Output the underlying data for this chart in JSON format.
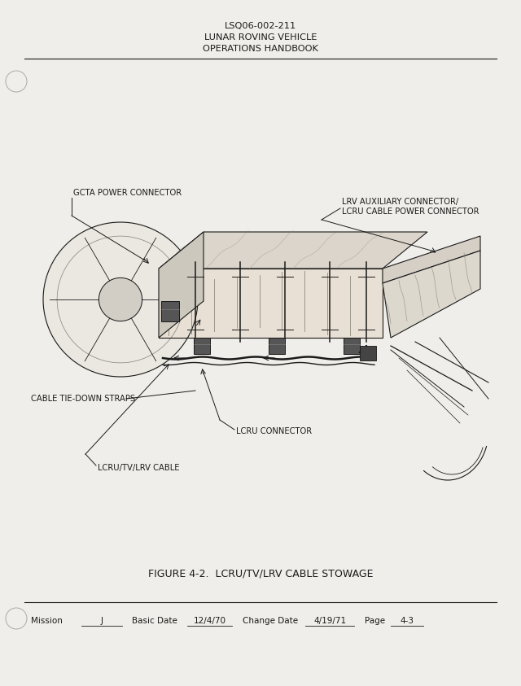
{
  "bg_color": "#f0eeea",
  "page_bg": "#f0eeea",
  "header_line1": "LSQ06-002-211",
  "header_line2": "LUNAR ROVING VEHICLE",
  "header_line3": "OPERATIONS HANDBOOK",
  "figure_caption": "FIGURE 4-2.  LCRU/TV/LRV CABLE STOWAGE",
  "label_gcta": "GCTA POWER CONNECTOR",
  "label_lrv_aux_1": "LRV AUXILIARY CONNECTOR/",
  "label_lrv_aux_2": "LCRU CABLE POWER CONNECTOR",
  "label_cable_tie": "CABLE TIE-DOWN STRAPS",
  "label_lcru_conn": "LCRU CONNECTOR",
  "label_lcru_tv_lrv": "LCRU/TV/LRV CABLE",
  "footer_mission_label": "Mission",
  "footer_mission_val": "J",
  "footer_basic_label": "Basic Date",
  "footer_basic_val": "12/4/70",
  "footer_change_label": "Change Date",
  "footer_change_val": "4/19/71",
  "footer_page_label": "Page",
  "footer_page_val": "4-3"
}
